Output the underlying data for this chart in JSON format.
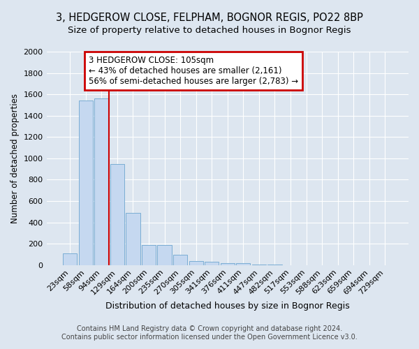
{
  "title1": "3, HEDGEROW CLOSE, FELPHAM, BOGNOR REGIS, PO22 8BP",
  "title2": "Size of property relative to detached houses in Bognor Regis",
  "xlabel": "Distribution of detached houses by size in Bognor Regis",
  "ylabel": "Number of detached properties",
  "footer1": "Contains HM Land Registry data © Crown copyright and database right 2024.",
  "footer2": "Contains public sector information licensed under the Open Government Licence v3.0.",
  "categories": [
    "23sqm",
    "58sqm",
    "94sqm",
    "129sqm",
    "164sqm",
    "200sqm",
    "235sqm",
    "270sqm",
    "305sqm",
    "341sqm",
    "376sqm",
    "411sqm",
    "447sqm",
    "482sqm",
    "517sqm",
    "553sqm",
    "588sqm",
    "623sqm",
    "659sqm",
    "694sqm",
    "729sqm"
  ],
  "values": [
    110,
    1540,
    1565,
    950,
    490,
    190,
    190,
    100,
    40,
    30,
    20,
    20,
    5,
    3,
    2,
    1,
    1,
    1,
    0,
    0,
    0
  ],
  "bar_color": "#c5d8f0",
  "bar_edge_color": "#7aadd4",
  "highlight_line_color": "#cc0000",
  "annotation_text": "3 HEDGEROW CLOSE: 105sqm\n← 43% of detached houses are smaller (2,161)\n56% of semi-detached houses are larger (2,783) →",
  "annotation_box_color": "#cc0000",
  "annotation_bg": "#ffffff",
  "ylim": [
    0,
    2000
  ],
  "yticks": [
    0,
    200,
    400,
    600,
    800,
    1000,
    1200,
    1400,
    1600,
    1800,
    2000
  ],
  "background_color": "#dde6f0",
  "plot_bg_color": "#dde6f0",
  "grid_color": "#ffffff",
  "title1_fontsize": 10.5,
  "title2_fontsize": 9.5,
  "xlabel_fontsize": 9,
  "ylabel_fontsize": 8.5,
  "footer_fontsize": 7,
  "tick_fontsize": 8,
  "annot_fontsize": 8.5
}
